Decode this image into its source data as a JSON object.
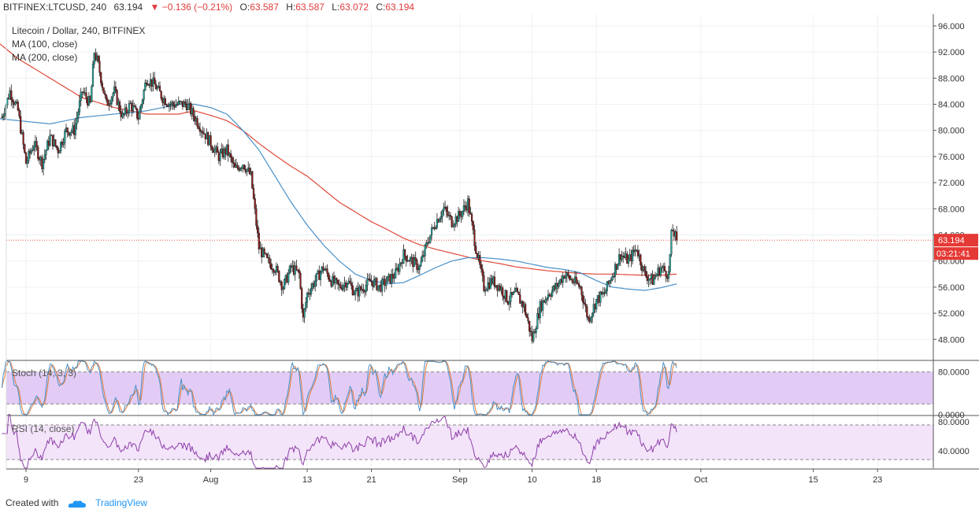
{
  "header": {
    "symbol": "BITFINEX:LTCUSD, 240",
    "last": "63.194",
    "arrow": "▼",
    "change": "−0.136 (−0.21%)",
    "o_label": "O:",
    "o": "63.587",
    "h_label": "H:",
    "h": "63.587",
    "l_label": "L:",
    "l": "63.072",
    "c_label": "C:",
    "c": "63.194"
  },
  "legend": {
    "title": "Litecoin / Dollar, 240, BITFINEX",
    "ma100": "MA (100, close)",
    "ma200": "MA (200, close)"
  },
  "price_tag": {
    "value": "63.194",
    "countdown": "03:21:41"
  },
  "stoch_label": "Stoch (14, 3, 3)",
  "rsi_label": "RSI (14, close)",
  "footer": {
    "created_with": "Created with",
    "brand": "TradingView"
  },
  "colors": {
    "up": "#26a69a",
    "down": "#8b1a1a",
    "ma100": "#4a90c8",
    "ma200": "#e04a3a",
    "stoch_k": "#4a90c8",
    "stoch_d": "#e07a3a",
    "rsi": "#8e3fa8",
    "stoch_band": "#e2ccf5",
    "rsi_band": "#f3e4fa",
    "tag": "#e53935"
  },
  "chart_data": {
    "type": "candlestick",
    "price_axis": {
      "ticks": [
        "96.000",
        "92.000",
        "88.000",
        "84.000",
        "80.000",
        "76.000",
        "72.000",
        "68.000",
        "64.000",
        "60.000",
        "56.000",
        "52.000",
        "48.000"
      ],
      "range": [
        44.9,
        97.8
      ]
    },
    "stoch_axis": {
      "ticks": [
        "80.0000",
        "0.0000"
      ],
      "band": [
        20,
        80
      ],
      "range": [
        0,
        100
      ]
    },
    "rsi_axis": {
      "ticks": [
        "80.0000",
        "40.0000"
      ],
      "band": [
        30,
        70
      ],
      "range": [
        20,
        80
      ]
    },
    "x_axis": {
      "labels": [
        {
          "text": "9",
          "day": 9
        },
        {
          "text": "23",
          "day": 23
        },
        {
          "text": "Aug",
          "day": 32
        },
        {
          "text": "13",
          "day": 44
        },
        {
          "text": "21",
          "day": 52
        },
        {
          "text": "Sep",
          "day": 63
        },
        {
          "text": "10",
          "day": 72
        },
        {
          "text": "18",
          "day": 80
        },
        {
          "text": "Oct",
          "day": 93
        },
        {
          "text": "15",
          "day": 107
        },
        {
          "text": "23",
          "day": 115
        }
      ]
    },
    "anchors": [
      [
        6,
        82
      ],
      [
        7,
        86
      ],
      [
        8,
        83
      ],
      [
        9,
        75
      ],
      [
        10,
        78
      ],
      [
        11,
        75
      ],
      [
        12,
        79
      ],
      [
        13,
        77
      ],
      [
        14,
        80
      ],
      [
        15,
        80
      ],
      [
        16,
        86
      ],
      [
        17,
        84
      ],
      [
        17.5,
        92
      ],
      [
        18,
        90
      ],
      [
        19,
        84
      ],
      [
        20,
        86
      ],
      [
        21,
        82
      ],
      [
        22,
        84
      ],
      [
        23,
        82
      ],
      [
        24,
        88
      ],
      [
        25,
        87
      ],
      [
        26,
        85
      ],
      [
        27,
        84
      ],
      [
        28,
        84
      ],
      [
        29,
        84
      ],
      [
        30,
        82
      ],
      [
        31,
        80
      ],
      [
        32,
        78
      ],
      [
        33,
        76
      ],
      [
        34,
        77
      ],
      [
        35,
        74
      ],
      [
        36,
        75
      ],
      [
        37,
        73
      ],
      [
        38,
        62
      ],
      [
        39,
        60
      ],
      [
        40,
        59
      ],
      [
        41,
        56
      ],
      [
        42,
        59
      ],
      [
        43,
        58
      ],
      [
        43.5,
        51
      ],
      [
        44,
        55
      ],
      [
        45,
        57
      ],
      [
        46,
        59
      ],
      [
        47,
        57
      ],
      [
        48,
        56
      ],
      [
        49,
        57
      ],
      [
        50,
        55
      ],
      [
        51,
        56
      ],
      [
        52,
        57
      ],
      [
        53,
        56
      ],
      [
        54,
        57
      ],
      [
        55,
        58
      ],
      [
        56,
        61
      ],
      [
        57,
        60
      ],
      [
        58,
        59
      ],
      [
        59,
        63
      ],
      [
        60,
        66
      ],
      [
        61,
        68
      ],
      [
        62,
        66
      ],
      [
        63,
        67
      ],
      [
        64,
        69
      ],
      [
        65,
        62
      ],
      [
        66,
        56
      ],
      [
        67,
        57
      ],
      [
        68,
        56
      ],
      [
        69,
        54
      ],
      [
        70,
        55
      ],
      [
        71,
        53
      ],
      [
        72,
        48
      ],
      [
        73,
        53
      ],
      [
        74,
        55
      ],
      [
        75,
        56
      ],
      [
        76,
        58
      ],
      [
        77,
        57
      ],
      [
        78,
        56
      ],
      [
        79,
        51
      ],
      [
        80,
        54
      ],
      [
        81,
        55
      ],
      [
        82,
        58
      ],
      [
        83,
        61
      ],
      [
        84,
        60
      ],
      [
        85,
        62
      ],
      [
        86,
        58
      ],
      [
        87,
        57
      ],
      [
        88,
        59
      ],
      [
        89,
        58
      ],
      [
        89.4,
        65
      ],
      [
        90,
        63.194
      ]
    ],
    "ma100_anchors": [
      [
        4,
        82
      ],
      [
        8,
        81.5
      ],
      [
        12,
        81
      ],
      [
        16,
        82
      ],
      [
        20,
        82.5
      ],
      [
        24,
        83
      ],
      [
        28,
        84
      ],
      [
        30,
        84
      ],
      [
        32,
        83.5
      ],
      [
        34,
        82.5
      ],
      [
        36,
        80
      ],
      [
        38,
        77
      ],
      [
        40,
        73
      ],
      [
        42,
        69
      ],
      [
        44,
        65.5
      ],
      [
        46,
        62.5
      ],
      [
        48,
        60
      ],
      [
        50,
        58
      ],
      [
        52,
        57
      ],
      [
        54,
        56.5
      ],
      [
        56,
        56.7
      ],
      [
        58,
        57.8
      ],
      [
        60,
        59
      ],
      [
        62,
        60
      ],
      [
        64,
        60.5
      ],
      [
        66,
        60.5
      ],
      [
        68,
        60.3
      ],
      [
        70,
        60
      ],
      [
        72,
        59.5
      ],
      [
        74,
        59
      ],
      [
        76,
        58.7
      ],
      [
        78,
        58.2
      ],
      [
        80,
        57
      ],
      [
        82,
        56
      ],
      [
        84,
        55.7
      ],
      [
        86,
        55.5
      ],
      [
        88,
        55.9
      ],
      [
        90,
        56.5
      ]
    ],
    "ma200_anchors": [
      [
        4,
        95
      ],
      [
        8,
        91
      ],
      [
        12,
        88
      ],
      [
        16,
        85
      ],
      [
        20,
        83.5
      ],
      [
        24,
        82.5
      ],
      [
        28,
        82.5
      ],
      [
        30,
        83
      ],
      [
        32,
        82.3
      ],
      [
        34,
        81.5
      ],
      [
        36,
        80
      ],
      [
        38,
        78
      ],
      [
        40,
        76.2
      ],
      [
        42,
        74.5
      ],
      [
        44,
        73
      ],
      [
        46,
        71
      ],
      [
        48,
        69
      ],
      [
        50,
        67.5
      ],
      [
        52,
        66
      ],
      [
        54,
        64.8
      ],
      [
        56,
        63.5
      ],
      [
        58,
        62.5
      ],
      [
        60,
        61.8
      ],
      [
        62,
        61.2
      ],
      [
        64,
        60.6
      ],
      [
        66,
        60
      ],
      [
        68,
        59.6
      ],
      [
        70,
        59.1
      ],
      [
        72,
        58.8
      ],
      [
        74,
        58.5
      ],
      [
        76,
        58.3
      ],
      [
        78,
        58.1
      ],
      [
        80,
        58
      ],
      [
        82,
        58
      ],
      [
        84,
        57.9
      ],
      [
        86,
        57.8
      ],
      [
        88,
        57.8
      ],
      [
        90,
        58
      ]
    ]
  }
}
